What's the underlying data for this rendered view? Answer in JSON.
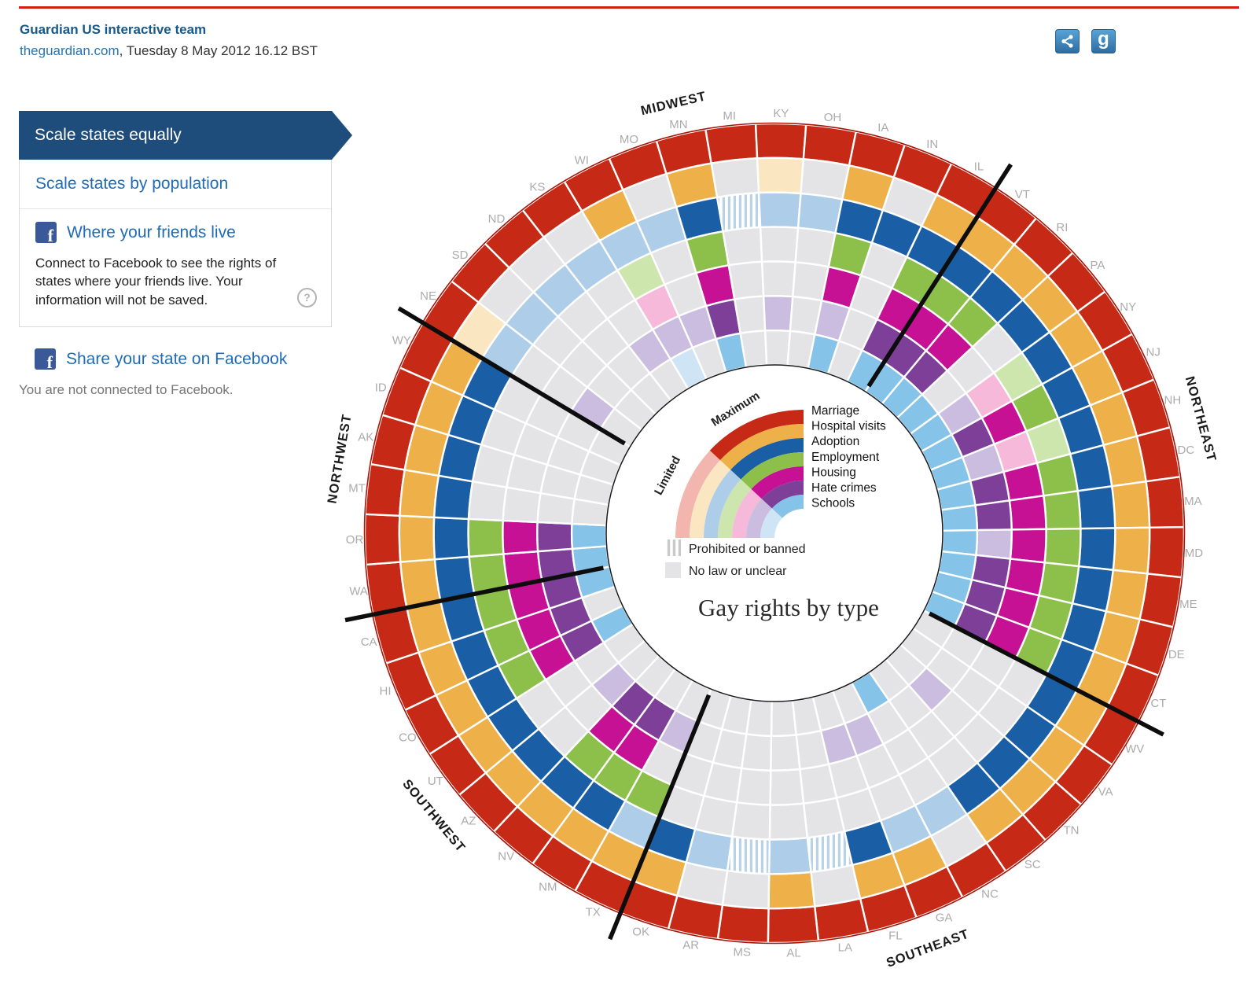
{
  "header": {
    "byline": "Guardian US interactive team",
    "site": "theguardian.com",
    "dateline": ", Tuesday 8 May 2012 16.12 BST",
    "icons": [
      {
        "name": "share-icon"
      },
      {
        "name": "google-plus-icon",
        "glyph": "g"
      }
    ]
  },
  "sidebar": {
    "scale_equally_label": "Scale states equally",
    "scale_population_label": "Scale states by population",
    "friends_title": "Where your friends live",
    "friends_desc": "Connect to Facebook to see the rights of states where your friends live. Your information will not be saved.",
    "help_glyph": "?",
    "share_state_label": "Share your state on Facebook",
    "not_connected": "You are not connected to Facebook.",
    "fb_glyph": "f"
  },
  "chart_data": {
    "type": "radial-grid",
    "title": "Gay rights by type",
    "max_label": "Maximum",
    "limited_label": "Limited",
    "banned_label": "Prohibited or banned",
    "nolaw_label": "No law or unclear",
    "status_codes": {
      "M": "maximum",
      "L": "limited",
      "N": "no law or unclear",
      "B": "prohibited or banned"
    },
    "none_color": "#e4e4e6",
    "banned_stripe_color": "#b8d2e8",
    "legend_stripe_color": "#c9c9c9",
    "rim_color": "#a81408",
    "rings": [
      {
        "id": "marriage",
        "label": "Marriage",
        "color": "#c62a16",
        "pale": "#f2b6ae"
      },
      {
        "id": "hospital",
        "label": "Hospital visits",
        "color": "#eeb049",
        "pale": "#fae7c2"
      },
      {
        "id": "adoption",
        "label": "Adoption",
        "color": "#1a5fa6",
        "pale": "#aecde9"
      },
      {
        "id": "employment",
        "label": "Employment",
        "color": "#8dc04b",
        "pale": "#cde6ae"
      },
      {
        "id": "housing",
        "label": "Housing",
        "color": "#c61195",
        "pale": "#f6b9da"
      },
      {
        "id": "hate",
        "label": "Hate crimes",
        "color": "#7d3f98",
        "pale": "#cabddf"
      },
      {
        "id": "schools",
        "label": "Schools",
        "color": "#85c3e9",
        "pale": "#cfe4f4"
      }
    ],
    "regions": [
      {
        "name": "MIDWEST",
        "states": [
          {
            "code": "NE",
            "values": "MLLNNLN"
          },
          {
            "code": "SD",
            "values": "MNLNNNN"
          },
          {
            "code": "ND",
            "values": "MNLNNNN"
          },
          {
            "code": "KS",
            "values": "MNLNNLN"
          },
          {
            "code": "WI",
            "values": "MMLLLLL"
          },
          {
            "code": "MO",
            "values": "MNLNNLN"
          },
          {
            "code": "MN",
            "values": "MMMMMMM"
          },
          {
            "code": "MI",
            "values": "MNBNNNN"
          },
          {
            "code": "KY",
            "values": "MLLNNLN"
          },
          {
            "code": "OH",
            "values": "MNLNNNN"
          },
          {
            "code": "IA",
            "values": "MMMMMLM"
          },
          {
            "code": "IN",
            "values": "MNMNNNN"
          },
          {
            "code": "IL",
            "values": "MMMMMMM"
          }
        ]
      },
      {
        "name": "NORTHEAST",
        "states": [
          {
            "code": "VT",
            "values": "MMMMMMM"
          },
          {
            "code": "RI",
            "values": "MMMMMMM"
          },
          {
            "code": "PA",
            "values": "MMMNNNM"
          },
          {
            "code": "NY",
            "values": "MMMLLLM"
          },
          {
            "code": "NJ",
            "values": "MMMMMMM"
          },
          {
            "code": "NH",
            "values": "MMMLLLM"
          },
          {
            "code": "DC",
            "values": "MMMMMMM"
          },
          {
            "code": "MA",
            "values": "MMMMMMM"
          },
          {
            "code": "MD",
            "values": "MMMMMLM"
          },
          {
            "code": "ME",
            "values": "MMMMMMM"
          },
          {
            "code": "DE",
            "values": "MMMMMMM"
          },
          {
            "code": "CT",
            "values": "MMMMMMM"
          }
        ]
      },
      {
        "name": "SOUTHEAST",
        "states": [
          {
            "code": "WV",
            "values": "MMMNNNN"
          },
          {
            "code": "VA",
            "values": "MMMNNNN"
          },
          {
            "code": "TN",
            "values": "MMMNNLN"
          },
          {
            "code": "SC",
            "values": "MMMNNNN"
          },
          {
            "code": "NC",
            "values": "MNLNNNM"
          },
          {
            "code": "GA",
            "values": "MMLNNLN"
          },
          {
            "code": "FL",
            "values": "MMMNNLN"
          },
          {
            "code": "LA",
            "values": "MNBNNNN"
          },
          {
            "code": "AL",
            "values": "MMLNNNN"
          },
          {
            "code": "MS",
            "values": "MNBNNNN"
          },
          {
            "code": "AR",
            "values": "MNLNNNN"
          },
          {
            "code": "OK",
            "values": "MMMNNNN"
          }
        ]
      },
      {
        "name": "SOUTHWEST",
        "states": [
          {
            "code": "TX",
            "values": "MMLMNLN"
          },
          {
            "code": "NM",
            "values": "MMMMMMN"
          },
          {
            "code": "NV",
            "values": "MMMMMMN"
          },
          {
            "code": "AZ",
            "values": "MMMNNLN"
          },
          {
            "code": "UT",
            "values": "MMMNNNN"
          },
          {
            "code": "CO",
            "values": "MMMMMMM"
          },
          {
            "code": "HI",
            "values": "MMMMMMN"
          },
          {
            "code": "CA",
            "values": "MMMMMMM"
          }
        ]
      },
      {
        "name": "NORTHWEST",
        "states": [
          {
            "code": "WA",
            "values": "MMMMMMM"
          },
          {
            "code": "OR",
            "values": "MMMMMMM"
          },
          {
            "code": "MT",
            "values": "MMMNNNN"
          },
          {
            "code": "AK",
            "values": "MMMNNNN"
          },
          {
            "code": "ID",
            "values": "MMMNNNN"
          },
          {
            "code": "WY",
            "values": "MMMNNNN"
          }
        ]
      }
    ]
  }
}
